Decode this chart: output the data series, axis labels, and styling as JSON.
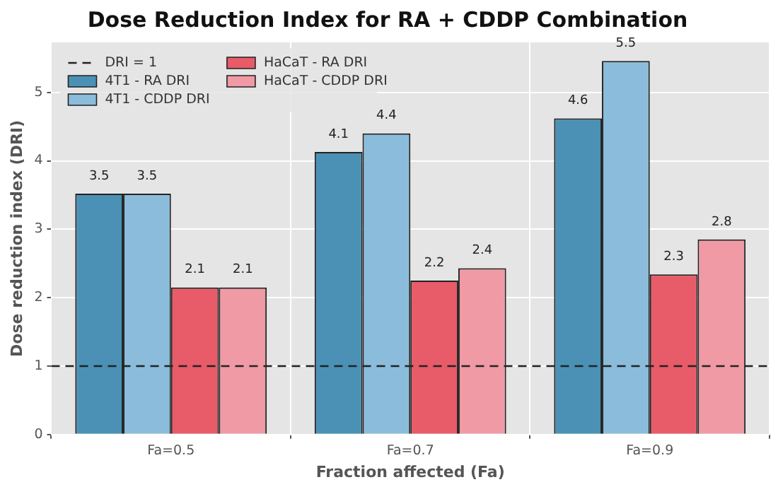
{
  "chart_data": {
    "type": "bar",
    "title": "Dose Reduction Index for RA + CDDP Combination",
    "xlabel": "Fraction affected (Fa)",
    "ylabel": "Dose reduction index (DRI)",
    "categories": [
      "Fa=0.5",
      "Fa=0.7",
      "Fa=0.9"
    ],
    "series": [
      {
        "name": "4T1 - RA DRI",
        "color": "#4a91b5",
        "values": [
          3.52,
          4.13,
          4.62
        ],
        "value_labels": [
          "3.5",
          "4.1",
          "4.6"
        ]
      },
      {
        "name": "4T1 - CDDP DRI",
        "color": "#8bbcdb",
        "values": [
          3.52,
          4.4,
          5.46
        ],
        "value_labels": [
          "3.5",
          "4.4",
          "5.5"
        ]
      },
      {
        "name": "HaCaT - RA DRI",
        "color": "#e85b69",
        "values": [
          2.15,
          2.25,
          2.34
        ],
        "value_labels": [
          "2.1",
          "2.2",
          "2.3"
        ]
      },
      {
        "name": "HaCaT - CDDP DRI",
        "color": "#f09aa6",
        "values": [
          2.15,
          2.43,
          2.85
        ],
        "value_labels": [
          "2.1",
          "2.4",
          "2.8"
        ]
      }
    ],
    "ylim": [
      0,
      5.73
    ],
    "yticks": [
      0,
      1,
      2,
      3,
      4,
      5
    ],
    "grid": true,
    "legend": "top left",
    "ref_lines": [
      {
        "axis": "y",
        "value": 1,
        "label": "DRI = 1",
        "color": "#222222",
        "line_style": "dashed"
      }
    ]
  }
}
